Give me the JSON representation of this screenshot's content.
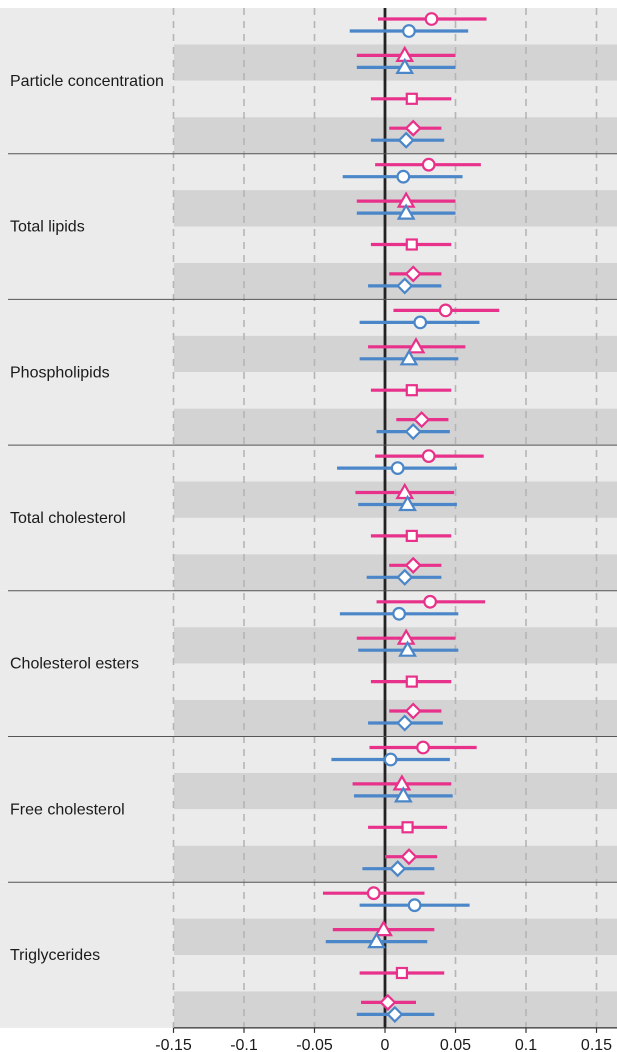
{
  "chart_data": {
    "type": "forest",
    "xlim": [
      -0.15,
      0.16
    ],
    "x_ticks": [
      "-0.15",
      "-0.1",
      "-0.05",
      "0",
      "0.05",
      "0.1",
      "0.15"
    ],
    "x_tick_values": [
      -0.15,
      -0.1,
      -0.05,
      0,
      0.05,
      0.1,
      0.15
    ],
    "zero_line": 0,
    "grid": "vertical dashed",
    "colors": {
      "pink": "#e8318a",
      "blue": "#4a86c8",
      "band_light": "#ebebeb",
      "band_dark": "#d3d3d3",
      "separator": "#555555",
      "zero_line": "#222222",
      "grid": "#b5b5b5"
    },
    "markers": [
      "circle",
      "triangle",
      "square",
      "diamond"
    ],
    "groups": [
      {
        "label": "Particle concentration",
        "pink": [
          {
            "marker": "circle",
            "est": 0.033,
            "lo": -0.005,
            "hi": 0.072
          },
          {
            "marker": "triangle",
            "est": 0.014,
            "lo": -0.02,
            "hi": 0.05
          },
          {
            "marker": "square",
            "est": 0.019,
            "lo": -0.01,
            "hi": 0.047
          },
          {
            "marker": "diamond",
            "est": 0.02,
            "lo": 0.003,
            "hi": 0.04
          }
        ],
        "blue": [
          {
            "marker": "circle",
            "est": 0.017,
            "lo": -0.025,
            "hi": 0.059
          },
          {
            "marker": "triangle",
            "est": 0.014,
            "lo": -0.02,
            "hi": 0.05
          },
          null,
          {
            "marker": "diamond",
            "est": 0.015,
            "lo": -0.01,
            "hi": 0.042
          }
        ]
      },
      {
        "label": "Total lipids",
        "pink": [
          {
            "marker": "circle",
            "est": 0.031,
            "lo": -0.007,
            "hi": 0.068
          },
          {
            "marker": "triangle",
            "est": 0.015,
            "lo": -0.02,
            "hi": 0.05
          },
          {
            "marker": "square",
            "est": 0.019,
            "lo": -0.01,
            "hi": 0.047
          },
          {
            "marker": "diamond",
            "est": 0.02,
            "lo": 0.003,
            "hi": 0.04
          }
        ],
        "blue": [
          {
            "marker": "circle",
            "est": 0.013,
            "lo": -0.03,
            "hi": 0.055
          },
          {
            "marker": "triangle",
            "est": 0.015,
            "lo": -0.02,
            "hi": 0.05
          },
          null,
          {
            "marker": "diamond",
            "est": 0.014,
            "lo": -0.012,
            "hi": 0.04
          }
        ]
      },
      {
        "label": "Phospholipids",
        "pink": [
          {
            "marker": "circle",
            "est": 0.043,
            "lo": 0.006,
            "hi": 0.081
          },
          {
            "marker": "triangle",
            "est": 0.022,
            "lo": -0.012,
            "hi": 0.057
          },
          {
            "marker": "square",
            "est": 0.019,
            "lo": -0.01,
            "hi": 0.047
          },
          {
            "marker": "diamond",
            "est": 0.026,
            "lo": 0.008,
            "hi": 0.045
          }
        ],
        "blue": [
          {
            "marker": "circle",
            "est": 0.025,
            "lo": -0.018,
            "hi": 0.067
          },
          {
            "marker": "triangle",
            "est": 0.017,
            "lo": -0.018,
            "hi": 0.052
          },
          null,
          {
            "marker": "diamond",
            "est": 0.02,
            "lo": -0.006,
            "hi": 0.046
          }
        ]
      },
      {
        "label": "Total cholesterol",
        "pink": [
          {
            "marker": "circle",
            "est": 0.031,
            "lo": -0.007,
            "hi": 0.07
          },
          {
            "marker": "triangle",
            "est": 0.014,
            "lo": -0.021,
            "hi": 0.049
          },
          {
            "marker": "square",
            "est": 0.019,
            "lo": -0.01,
            "hi": 0.047
          },
          {
            "marker": "diamond",
            "est": 0.02,
            "lo": 0.003,
            "hi": 0.04
          }
        ],
        "blue": [
          {
            "marker": "circle",
            "est": 0.009,
            "lo": -0.034,
            "hi": 0.051
          },
          {
            "marker": "triangle",
            "est": 0.016,
            "lo": -0.019,
            "hi": 0.051
          },
          null,
          {
            "marker": "diamond",
            "est": 0.014,
            "lo": -0.013,
            "hi": 0.04
          }
        ]
      },
      {
        "label": "Cholesterol esters",
        "pink": [
          {
            "marker": "circle",
            "est": 0.032,
            "lo": -0.006,
            "hi": 0.071
          },
          {
            "marker": "triangle",
            "est": 0.015,
            "lo": -0.02,
            "hi": 0.05
          },
          {
            "marker": "square",
            "est": 0.019,
            "lo": -0.01,
            "hi": 0.047
          },
          {
            "marker": "diamond",
            "est": 0.02,
            "lo": 0.003,
            "hi": 0.04
          }
        ],
        "blue": [
          {
            "marker": "circle",
            "est": 0.01,
            "lo": -0.032,
            "hi": 0.052
          },
          {
            "marker": "triangle",
            "est": 0.016,
            "lo": -0.019,
            "hi": 0.052
          },
          null,
          {
            "marker": "diamond",
            "est": 0.014,
            "lo": -0.012,
            "hi": 0.041
          }
        ]
      },
      {
        "label": "Free cholesterol",
        "pink": [
          {
            "marker": "circle",
            "est": 0.027,
            "lo": -0.011,
            "hi": 0.065
          },
          {
            "marker": "triangle",
            "est": 0.012,
            "lo": -0.023,
            "hi": 0.047
          },
          {
            "marker": "square",
            "est": 0.016,
            "lo": -0.012,
            "hi": 0.044
          },
          {
            "marker": "diamond",
            "est": 0.017,
            "lo": 0.0,
            "hi": 0.037
          }
        ],
        "blue": [
          {
            "marker": "circle",
            "est": 0.004,
            "lo": -0.038,
            "hi": 0.046
          },
          {
            "marker": "triangle",
            "est": 0.013,
            "lo": -0.022,
            "hi": 0.048
          },
          null,
          {
            "marker": "diamond",
            "est": 0.009,
            "lo": -0.016,
            "hi": 0.035
          }
        ]
      },
      {
        "label": "Triglycerides",
        "pink": [
          {
            "marker": "circle",
            "est": -0.008,
            "lo": -0.044,
            "hi": 0.028
          },
          {
            "marker": "triangle",
            "est": -0.001,
            "lo": -0.037,
            "hi": 0.035
          },
          {
            "marker": "square",
            "est": 0.012,
            "lo": -0.018,
            "hi": 0.042
          },
          {
            "marker": "diamond",
            "est": 0.002,
            "lo": -0.017,
            "hi": 0.022
          }
        ],
        "blue": [
          {
            "marker": "circle",
            "est": 0.021,
            "lo": -0.018,
            "hi": 0.06
          },
          {
            "marker": "triangle",
            "est": -0.006,
            "lo": -0.042,
            "hi": 0.03
          },
          null,
          {
            "marker": "diamond",
            "est": 0.007,
            "lo": -0.02,
            "hi": 0.035
          }
        ]
      }
    ]
  }
}
